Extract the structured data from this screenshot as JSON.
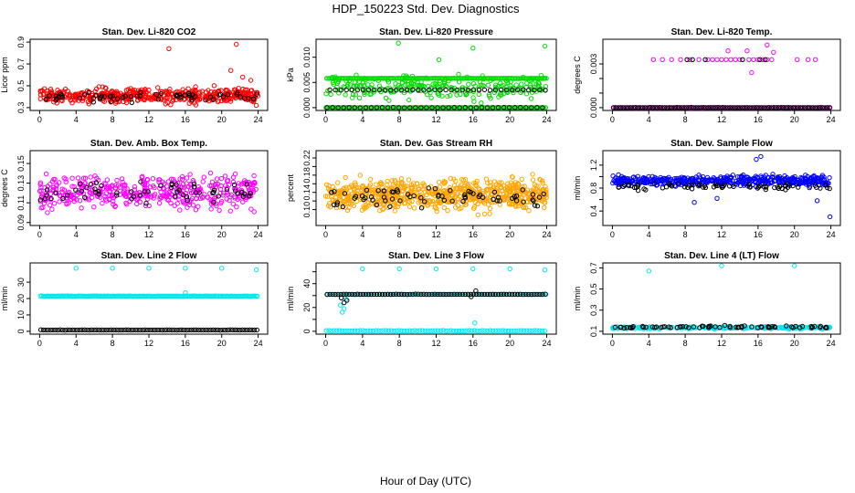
{
  "figure": {
    "title": "HDP_150223  Std. Dev. Diagnostics",
    "xlabel": "Hour of Day (UTC)"
  },
  "chart_data": [
    {
      "type": "scatter",
      "title": "Stan. Dev. Li-820 CO2",
      "ylabel": "Licor ppm",
      "xlim": [
        0,
        24
      ],
      "ylim": [
        0.3,
        0.9
      ],
      "xticks": [
        0,
        4,
        8,
        12,
        16,
        20,
        24
      ],
      "yticks": [
        0.3,
        0.5,
        0.7,
        0.9
      ],
      "ytick_labels": [
        "0.3",
        "0.5",
        "0.7",
        "0.9"
      ],
      "series": [
        {
          "color": "#ff0000",
          "kind": "band",
          "mean": 0.41,
          "spread": 0.07,
          "count": 480
        },
        {
          "color": "#000000",
          "kind": "band",
          "mean": 0.4,
          "spread": 0.05,
          "count": 60
        },
        {
          "color": "#ff0000",
          "kind": "points",
          "x": [
            14.2,
            21.6,
            21.0,
            22.3,
            23.8,
            23.2
          ],
          "y": [
            0.84,
            0.88,
            0.64,
            0.58,
            0.32,
            0.55
          ]
        }
      ]
    },
    {
      "type": "scatter",
      "title": "Stan. Dev. Li-820 Pressure",
      "ylabel": "kPa",
      "xlim": [
        0,
        24
      ],
      "ylim": [
        0,
        0.013
      ],
      "xticks": [
        0,
        4,
        8,
        12,
        16,
        20,
        24
      ],
      "yticks": [
        0,
        0.005,
        0.01
      ],
      "ytick_labels": [
        "0.000",
        "0.005",
        "0.010"
      ],
      "series": [
        {
          "color": "#00dd00",
          "kind": "levels",
          "levels": [
            0.0,
            0.0058
          ],
          "count": 320
        },
        {
          "color": "#00dd00",
          "kind": "band",
          "mean": 0.004,
          "spread": 0.0022,
          "count": 260
        },
        {
          "color": "#000000",
          "kind": "levels",
          "levels": [
            0.0,
            0.0035
          ],
          "count": 80
        },
        {
          "color": "#00dd00",
          "kind": "points",
          "x": [
            7.9,
            12.3,
            16.0,
            23.8
          ],
          "y": [
            0.0128,
            0.0095,
            0.0118,
            0.0122
          ]
        }
      ]
    },
    {
      "type": "scatter",
      "title": "Stan. Dev. Li-820 Temp.",
      "ylabel": "degrees C",
      "xlim": [
        0,
        24
      ],
      "ylim": [
        0,
        0.0045
      ],
      "xticks": [
        0,
        4,
        8,
        12,
        16,
        20,
        24
      ],
      "yticks": [
        0,
        0.001,
        0.002,
        0.003
      ],
      "ytick_labels": [
        "0.000",
        "",
        "",
        "0.003"
      ],
      "series": [
        {
          "color": "#ff00ff",
          "kind": "levels",
          "levels": [
            0.0
          ],
          "count": 120
        },
        {
          "color": "#000000",
          "kind": "levels",
          "levels": [
            0.0
          ],
          "count": 90
        },
        {
          "color": "#ff00ff",
          "kind": "points",
          "x": [
            4.5,
            5.5,
            6.5,
            7.5,
            8.5,
            9.5,
            10.5,
            11.0,
            11.5,
            12.0,
            12.5,
            13.0,
            13.5,
            14.0,
            15.0,
            15.5,
            16.0,
            16.5,
            17.0,
            17.5,
            20.3,
            21.5,
            22.3,
            12.7,
            14.8,
            15.3,
            17.0,
            17.7
          ],
          "y": [
            0.0033,
            0.0033,
            0.0033,
            0.0033,
            0.0033,
            0.0033,
            0.0033,
            0.0033,
            0.0033,
            0.0033,
            0.0033,
            0.0033,
            0.0033,
            0.0033,
            0.0033,
            0.0033,
            0.0033,
            0.0033,
            0.0033,
            0.0033,
            0.0033,
            0.0033,
            0.0033,
            0.0039,
            0.0039,
            0.0024,
            0.0043,
            0.0038
          ]
        },
        {
          "color": "#000000",
          "kind": "points",
          "x": [
            8.2,
            8.8,
            10.2,
            14.3,
            16.2,
            16.8
          ],
          "y": [
            0.0033,
            0.0033,
            0.0033,
            0.0033,
            0.0033,
            0.0033
          ]
        }
      ]
    },
    {
      "type": "scatter",
      "title": "Stan. Dev. Amb. Box Temp.",
      "ylabel": "degrees C",
      "xlim": [
        0,
        24
      ],
      "ylim": [
        0.09,
        0.16
      ],
      "xticks": [
        0,
        4,
        8,
        12,
        16,
        20,
        24
      ],
      "yticks": [
        0.09,
        0.11,
        0.13,
        0.15
      ],
      "ytick_labels": [
        "0.09",
        "0.11",
        "0.13",
        "0.15"
      ],
      "series": [
        {
          "color": "#ff00ff",
          "kind": "band",
          "mean": 0.121,
          "spread": 0.017,
          "count": 440
        },
        {
          "color": "#000000",
          "kind": "band",
          "mean": 0.121,
          "spread": 0.012,
          "count": 60
        }
      ]
    },
    {
      "type": "scatter",
      "title": "Stan. Dev. Gas Stream RH",
      "ylabel": "percent",
      "xlim": [
        0,
        24
      ],
      "ylim": [
        0.07,
        0.23
      ],
      "xticks": [
        0,
        4,
        8,
        12,
        16,
        20,
        24
      ],
      "yticks": [
        0.1,
        0.12,
        0.14,
        0.16,
        0.18,
        0.2,
        0.22
      ],
      "ytick_labels": [
        "0.10",
        "",
        "0.14",
        "",
        "0.18",
        "",
        "0.22"
      ],
      "series": [
        {
          "color": "#ffa500",
          "kind": "band",
          "mean": 0.135,
          "spread": 0.035,
          "count": 720
        },
        {
          "color": "#000000",
          "kind": "band",
          "mean": 0.13,
          "spread": 0.025,
          "count": 70
        }
      ]
    },
    {
      "type": "scatter",
      "title": "Stan. Dev. Sample Flow",
      "ylabel": "ml/min",
      "xlim": [
        0,
        24
      ],
      "ylim": [
        0.2,
        1.4
      ],
      "xticks": [
        0,
        4,
        8,
        12,
        16,
        20,
        24
      ],
      "yticks": [
        0.4,
        0.6,
        0.8,
        1.0,
        1.2
      ],
      "ytick_labels": [
        "0.4",
        "",
        "0.8",
        "",
        "1.2"
      ],
      "series": [
        {
          "color": "#0000ff",
          "kind": "band",
          "mean": 0.93,
          "spread": 0.09,
          "count": 480
        },
        {
          "color": "#000000",
          "kind": "band",
          "mean": 0.82,
          "spread": 0.06,
          "count": 70
        },
        {
          "color": "#0000ff",
          "kind": "points",
          "x": [
            15.8,
            16.3,
            9.0,
            11.5,
            23.9,
            22.5
          ],
          "y": [
            1.3,
            1.35,
            0.55,
            0.62,
            0.3,
            0.58
          ]
        }
      ]
    },
    {
      "type": "scatter",
      "title": "Stan. Dev. Line 2 Flow",
      "ylabel": "ml/min",
      "xlim": [
        0,
        24
      ],
      "ylim": [
        0,
        40
      ],
      "xticks": [
        0,
        4,
        8,
        12,
        16,
        20,
        24
      ],
      "yticks": [
        0,
        10,
        20,
        30
      ],
      "ytick_labels": [
        "0",
        "10",
        "20",
        "30"
      ],
      "series": [
        {
          "color": "#00e5ee",
          "kind": "levels",
          "levels": [
            21.5
          ],
          "count": 150
        },
        {
          "color": "#000000",
          "kind": "levels",
          "levels": [
            0.8
          ],
          "count": 90
        },
        {
          "color": "#00e5ee",
          "kind": "points",
          "x": [
            4,
            8,
            12,
            16,
            20,
            23.8,
            16
          ],
          "y": [
            38.5,
            38.5,
            38.5,
            38.5,
            38.5,
            37.5,
            23.5
          ]
        }
      ]
    },
    {
      "type": "scatter",
      "title": "Stan. Dev. Line 3 Flow",
      "ylabel": "ml/min",
      "xlim": [
        0,
        24
      ],
      "ylim": [
        0,
        55
      ],
      "xticks": [
        0,
        4,
        8,
        12,
        16,
        20,
        24
      ],
      "yticks": [
        0,
        10,
        20,
        30,
        40,
        50
      ],
      "ytick_labels": [
        "0",
        "",
        "20",
        "",
        "40",
        ""
      ],
      "series": [
        {
          "color": "#00e5ee",
          "kind": "levels",
          "levels": [
            0.5,
            31.0
          ],
          "count": 170
        },
        {
          "color": "#000000",
          "kind": "levels",
          "levels": [
            31.0
          ],
          "count": 80
        },
        {
          "color": "#00e5ee",
          "kind": "points",
          "x": [
            4,
            8,
            12,
            16,
            20,
            23.8,
            1.6,
            1.8,
            2.0,
            2.2,
            16.2
          ],
          "y": [
            52.5,
            52.5,
            52.5,
            52.5,
            52.5,
            51.5,
            22,
            16,
            19,
            27,
            7
          ]
        },
        {
          "color": "#000000",
          "kind": "points",
          "x": [
            1.7,
            2.0,
            2.3,
            16.3,
            15.8
          ],
          "y": [
            28,
            24,
            26,
            34,
            29
          ]
        }
      ]
    },
    {
      "type": "scatter",
      "title": "Stan. Dev. Line 4 (LT) Flow",
      "ylabel": "ml/min",
      "xlim": [
        0,
        24
      ],
      "ylim": [
        0.1,
        0.72
      ],
      "xticks": [
        0,
        4,
        8,
        12,
        16,
        20,
        24
      ],
      "yticks": [
        0.1,
        0.3,
        0.5,
        0.7
      ],
      "ytick_labels": [
        "0.1",
        "0.3",
        "0.5",
        "0.7"
      ],
      "series": [
        {
          "color": "#00e5ee",
          "kind": "band",
          "mean": 0.135,
          "spread": 0.012,
          "count": 240
        },
        {
          "color": "#000000",
          "kind": "band",
          "mean": 0.14,
          "spread": 0.012,
          "count": 70
        },
        {
          "color": "#00e5ee",
          "kind": "points",
          "x": [
            4,
            12,
            20
          ],
          "y": [
            0.67,
            0.72,
            0.72
          ]
        }
      ]
    }
  ]
}
